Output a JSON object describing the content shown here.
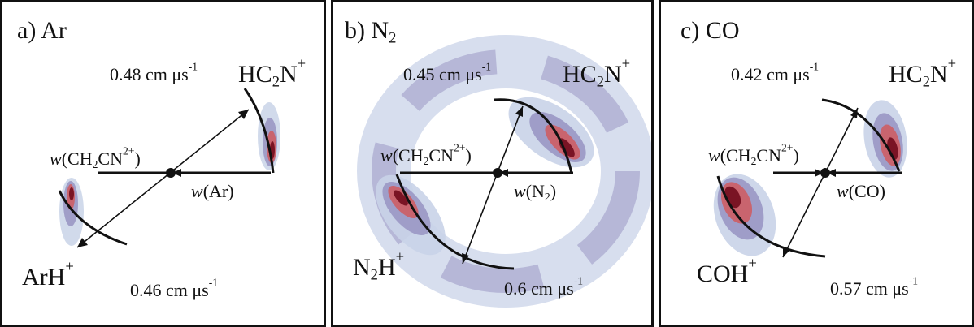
{
  "panels": [
    {
      "letter": "a)",
      "species": "Ar",
      "top_product": {
        "base": "HC",
        "sub1": "2",
        "mid": "N",
        "sup": "+"
      },
      "bottom_product": {
        "base": "ArH",
        "sup": "+"
      },
      "top_velocity": {
        "value": "0.48 cm μs",
        "exp": "-1"
      },
      "bottom_velocity": {
        "value": "0.46 cm μs",
        "exp": "-1"
      },
      "w_dication": {
        "w": "w",
        "open": "(CH",
        "sub": "2",
        "mid": "CN",
        "sup": "2+",
        "close": ")"
      },
      "w_neutral": {
        "w": "w",
        "open": "(",
        "species": "Ar",
        "sub": "",
        "close": ")"
      }
    },
    {
      "letter": "b)",
      "species": "N",
      "species_sub": "2",
      "top_product": {
        "base": "HC",
        "sub1": "2",
        "mid": "N",
        "sup": "+"
      },
      "bottom_product": {
        "base": "N",
        "sub1": "2",
        "mid": "H",
        "sup": "+"
      },
      "top_velocity": {
        "value": "0.45 cm μs",
        "exp": "-1"
      },
      "bottom_velocity": {
        "value": "0.6 cm μs",
        "exp": "-1"
      },
      "w_dication": {
        "w": "w",
        "open": "(CH",
        "sub": "2",
        "mid": "CN",
        "sup": "2+",
        "close": ")"
      },
      "w_neutral": {
        "w": "w",
        "open": "(",
        "species": "N",
        "sub": "2",
        "close": ")"
      }
    },
    {
      "letter": "c)",
      "species": "CO",
      "top_product": {
        "base": "HC",
        "sub1": "2",
        "mid": "N",
        "sup": "+"
      },
      "bottom_product": {
        "base": "COH",
        "sup": "+"
      },
      "top_velocity": {
        "value": "0.42 cm μs",
        "exp": "-1"
      },
      "bottom_velocity": {
        "value": "0.57 cm μs",
        "exp": "-1"
      },
      "w_dication": {
        "w": "w",
        "open": "(CH",
        "sub": "2",
        "mid": "CN",
        "sup": "2+",
        "close": ")"
      },
      "w_neutral": {
        "w": "w",
        "open": "(",
        "species": "CO",
        "sub": "",
        "close": ")"
      }
    }
  ],
  "colors": {
    "frame": "#111111",
    "ink": "#111111",
    "intensity_low": "#c9d3e8",
    "intensity_mid": "#9a97c4",
    "intensity_high": "#c9646e",
    "intensity_peak": "#7a1424"
  }
}
